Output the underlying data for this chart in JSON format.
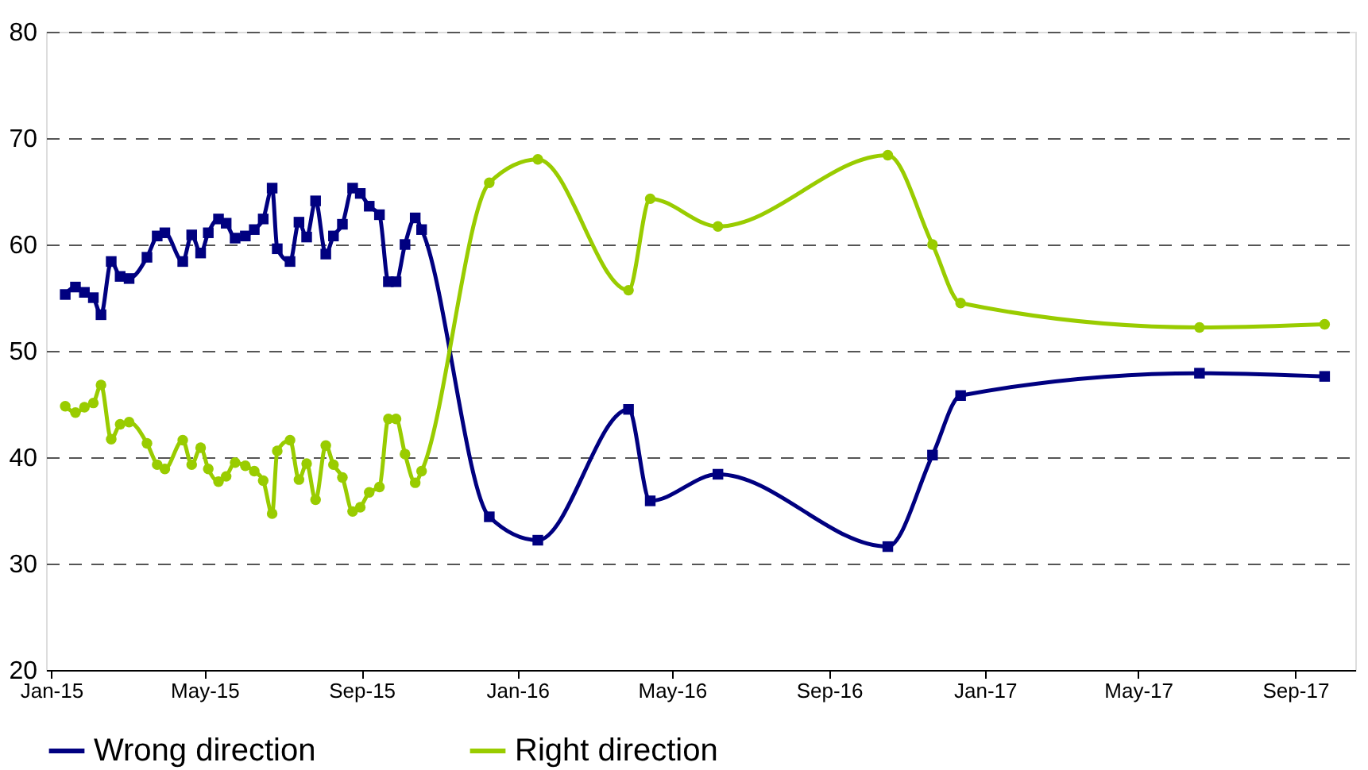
{
  "chart_data": {
    "type": "line",
    "x": [
      "2015-01-12",
      "2015-01-20",
      "2015-01-27",
      "2015-02-03",
      "2015-02-09",
      "2015-02-17",
      "2015-02-24",
      "2015-03-03",
      "2015-03-17",
      "2015-03-25",
      "2015-03-31",
      "2015-04-14",
      "2015-04-21",
      "2015-04-28",
      "2015-05-04",
      "2015-05-12",
      "2015-05-18",
      "2015-05-25",
      "2015-06-02",
      "2015-06-09",
      "2015-06-16",
      "2015-06-23",
      "2015-06-27",
      "2015-07-07",
      "2015-07-14",
      "2015-07-20",
      "2015-07-27",
      "2015-08-04",
      "2015-08-10",
      "2015-08-17",
      "2015-08-25",
      "2015-08-31",
      "2015-09-07",
      "2015-09-15",
      "2015-09-22",
      "2015-09-28",
      "2015-10-05",
      "2015-10-13",
      "2015-10-18",
      "2015-12-10",
      "2016-01-17",
      "2016-03-28",
      "2016-04-14",
      "2016-06-06",
      "2016-10-17",
      "2016-11-21",
      "2016-12-13",
      "2017-06-18",
      "2017-09-24"
    ],
    "series": [
      {
        "name": "Wrong direction",
        "color": "#000080",
        "marker": "square",
        "values": [
          55.3,
          56.0,
          55.5,
          55.0,
          53.4,
          58.4,
          57.0,
          56.8,
          58.8,
          60.8,
          61.1,
          58.4,
          60.9,
          59.2,
          61.1,
          62.4,
          62.0,
          60.6,
          60.8,
          61.4,
          62.4,
          65.3,
          59.6,
          58.4,
          62.1,
          60.7,
          64.1,
          59.1,
          60.8,
          61.9,
          65.3,
          64.8,
          63.6,
          62.8,
          56.5,
          56.5,
          60.0,
          62.5,
          61.4,
          34.4,
          32.2,
          44.5,
          35.9,
          38.4,
          31.6,
          40.2,
          45.8,
          47.9,
          47.6
        ]
      },
      {
        "name": "Right direction",
        "color": "#99cc00",
        "marker": "circle",
        "values": [
          44.8,
          44.2,
          44.7,
          45.1,
          46.8,
          41.7,
          43.1,
          43.3,
          41.3,
          39.3,
          38.9,
          41.6,
          39.3,
          40.9,
          38.9,
          37.7,
          38.2,
          39.5,
          39.2,
          38.7,
          37.8,
          34.7,
          40.6,
          41.6,
          37.9,
          39.4,
          36.0,
          41.1,
          39.3,
          38.1,
          34.9,
          35.3,
          36.7,
          37.2,
          43.6,
          43.6,
          40.3,
          37.6,
          38.7,
          65.8,
          68.0,
          55.7,
          64.3,
          61.7,
          68.4,
          60.0,
          54.5,
          52.2,
          52.5
        ]
      }
    ],
    "xlim": [
      "2014-12-28",
      "2017-10-18"
    ],
    "xticks": [
      {
        "value": "2015-01-01",
        "label": "Jan-15"
      },
      {
        "value": "2015-05-01",
        "label": "May-15"
      },
      {
        "value": "2015-09-01",
        "label": "Sep-15"
      },
      {
        "value": "2016-01-01",
        "label": "Jan-16"
      },
      {
        "value": "2016-05-01",
        "label": "May-16"
      },
      {
        "value": "2016-09-01",
        "label": "Sep-16"
      },
      {
        "value": "2017-01-01",
        "label": "Jan-17"
      },
      {
        "value": "2017-05-01",
        "label": "May-17"
      },
      {
        "value": "2017-09-01",
        "label": "Sep-17"
      }
    ],
    "ylim": [
      20,
      80
    ],
    "yticks": [
      20,
      30,
      40,
      50,
      60,
      70,
      80
    ],
    "grid": "y",
    "legend": "bottom",
    "line_style": "solid"
  }
}
